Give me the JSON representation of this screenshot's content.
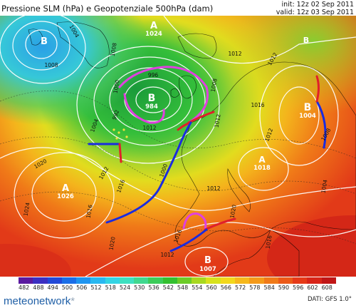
{
  "header": {
    "title": "Pressione SLM (hPa) e Geopotenziale 500hPa (dam)",
    "init": "init: 12z 02 Sep 2011",
    "valid": "valid: 12z 03 Sep 2011"
  },
  "map": {
    "pressure_centers": [
      {
        "type": "A",
        "value": "1024"
      },
      {
        "type": "B",
        "value": "984"
      },
      {
        "type": "A",
        "value": "1026"
      },
      {
        "type": "B",
        "value": "1004"
      },
      {
        "type": "A",
        "value": "1018"
      },
      {
        "type": "B",
        "value": "1007"
      },
      {
        "type": "B",
        "value": ""
      },
      {
        "type": "B",
        "value": ""
      }
    ],
    "isobar_labels": [
      "1004",
      "1008",
      "1012",
      "996",
      "992",
      "1000",
      "1004",
      "1008",
      "1012",
      "1016",
      "1020",
      "1024",
      "1016",
      "1012",
      "1008",
      "1016",
      "1012",
      "1012",
      "1012",
      "1016",
      "1020",
      "1008",
      "1004",
      "1000",
      "1012",
      "1016",
      "1012",
      "1020"
    ]
  },
  "legend": {
    "values": [
      "482",
      "488",
      "494",
      "500",
      "506",
      "512",
      "518",
      "524",
      "530",
      "536",
      "542",
      "548",
      "554",
      "560",
      "566",
      "572",
      "578",
      "584",
      "590",
      "596",
      "602",
      "608"
    ],
    "colors": [
      "#5a1aa0",
      "#3b2fc2",
      "#2249d8",
      "#1a6ee8",
      "#1f95f0",
      "#29b8f0",
      "#34d4e4",
      "#3ee0c0",
      "#40d890",
      "#3ccc5a",
      "#34c030",
      "#6ccc28",
      "#a8d820",
      "#d8e21c",
      "#f2d81c",
      "#f6b81c",
      "#f49a1a",
      "#f07a18",
      "#ec5a18",
      "#e63a18",
      "#d82418",
      "#c01616"
    ]
  },
  "footer": {
    "logo": "meteonetwork",
    "logo_mark": "*",
    "data_source": "DATI: GFS 1.0°"
  }
}
